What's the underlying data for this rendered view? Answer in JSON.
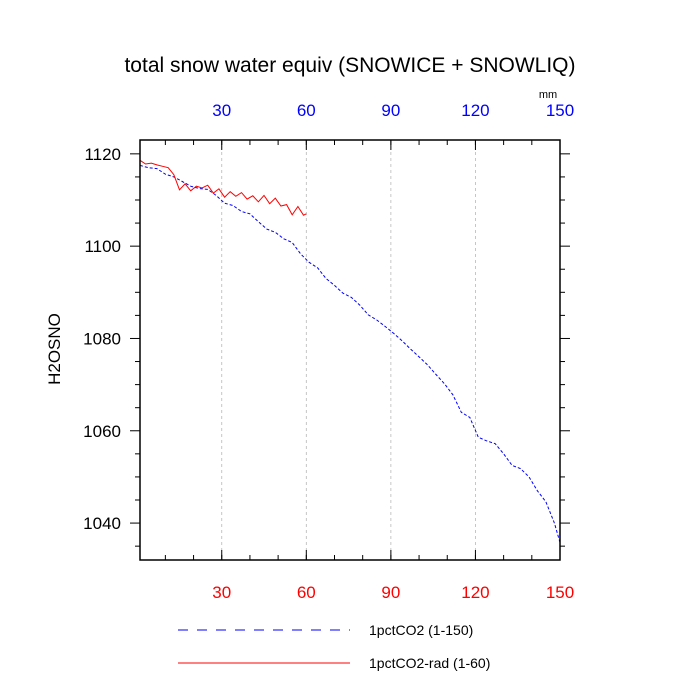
{
  "chart_data": {
    "type": "line",
    "title": "total snow water equiv (SNOWICE + SNOWLIQ)",
    "units": "mm",
    "xlabel": "",
    "ylabel": "H2OSNO",
    "xlim": [
      1,
      150
    ],
    "ylim": [
      1032,
      1123
    ],
    "xticks": [
      30,
      60,
      90,
      120,
      150
    ],
    "yticks": [
      1040,
      1060,
      1080,
      1100,
      1120
    ],
    "top_axis_color": "#0000ff",
    "bottom_axis_color": "#ff0000",
    "grid": "vertical dashed at x ticks",
    "legend_position": "bottom",
    "series": [
      {
        "name": "1pctCO2 (1-150)",
        "color": "#0000ff",
        "dash": "dashed",
        "x": [
          1,
          4,
          7,
          10,
          13,
          16,
          19,
          22,
          25,
          28,
          31,
          34,
          37,
          40,
          43,
          46,
          49,
          52,
          55,
          58,
          61,
          64,
          67,
          70,
          73,
          76,
          79,
          82,
          85,
          88,
          91,
          94,
          97,
          100,
          103,
          106,
          109,
          112,
          115,
          118,
          121,
          124,
          127,
          130,
          133,
          136,
          139,
          142,
          145,
          148,
          150
        ],
        "y": [
          1117.5,
          1117.0,
          1116.8,
          1115.6,
          1115.0,
          1114.0,
          1113.0,
          1112.5,
          1112.3,
          1111.0,
          1109.3,
          1108.8,
          1107.5,
          1107.0,
          1105.3,
          1103.7,
          1103.0,
          1101.6,
          1100.8,
          1098.3,
          1096.5,
          1095.3,
          1093.0,
          1091.5,
          1089.8,
          1088.9,
          1087.2,
          1085.1,
          1084.0,
          1082.6,
          1081.1,
          1079.5,
          1077.7,
          1076.0,
          1074.3,
          1072.2,
          1070.2,
          1067.8,
          1064.0,
          1062.9,
          1058.6,
          1057.8,
          1057.2,
          1055.0,
          1052.5,
          1051.8,
          1050.0,
          1047.0,
          1044.6,
          1040.0,
          1035.8
        ]
      },
      {
        "name": "1pctCO2-rad (1-60)",
        "color": "#ff0000",
        "dash": "solid",
        "x": [
          1,
          3,
          5,
          7,
          9,
          11,
          13,
          15,
          17,
          19,
          21,
          23,
          25,
          27,
          29,
          31,
          33,
          35,
          37,
          39,
          41,
          43,
          45,
          47,
          49,
          51,
          53,
          55,
          57,
          59,
          60
        ],
        "y": [
          1118.6,
          1117.8,
          1118.0,
          1117.6,
          1117.3,
          1117.0,
          1115.5,
          1112.2,
          1113.5,
          1112.0,
          1113.0,
          1112.6,
          1113.2,
          1111.5,
          1112.4,
          1110.6,
          1111.8,
          1110.8,
          1111.6,
          1110.2,
          1110.9,
          1109.6,
          1111.0,
          1109.2,
          1110.4,
          1108.7,
          1109.0,
          1106.8,
          1108.6,
          1106.7,
          1107.0
        ]
      }
    ]
  }
}
